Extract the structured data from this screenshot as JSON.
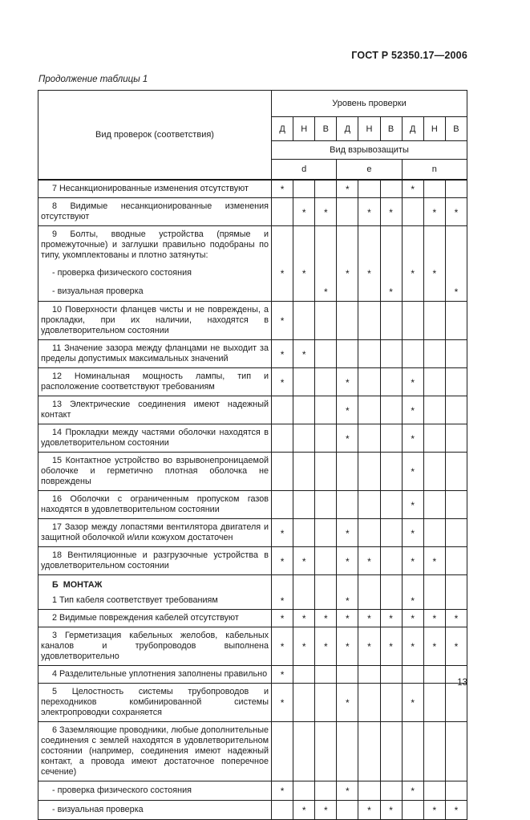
{
  "page": {
    "doc_code": "ГОСТ Р 52350.17—2006",
    "table_caption": "Продолжение таблицы 1",
    "page_number": "13"
  },
  "colors": {
    "ink": "#1c1c1c",
    "paper": "#ffffff"
  },
  "table": {
    "header": {
      "col_label": "Вид проверок (соответствия)",
      "level_label": "Уровень проверки",
      "levels": [
        "Д",
        "Н",
        "В",
        "Д",
        "Н",
        "В",
        "Д",
        "Н",
        "В"
      ],
      "protection_label": "Вид взрывозащиты",
      "protection_types": [
        "d",
        "e",
        "n"
      ]
    },
    "mark_glyph": "*",
    "rows": [
      {
        "label": "7 Несанкционированные изменения отсутствуют",
        "marks": [
          1,
          0,
          0,
          1,
          0,
          0,
          1,
          0,
          0
        ]
      },
      {
        "label": "8 Видимые несанкционированные изменения отсутствуют",
        "marks": [
          0,
          1,
          1,
          0,
          1,
          1,
          0,
          1,
          1
        ]
      },
      {
        "label": "9 Болты, вводные устройства (прямые и промежуточные) и заглушки правильно подобраны по типу, укомплектованы и плотно затянуты:",
        "marks": [
          0,
          0,
          0,
          0,
          0,
          0,
          0,
          0,
          0
        ]
      },
      {
        "label": "- проверка физического состояния",
        "dash": true,
        "join_prev": true,
        "marks": [
          1,
          1,
          0,
          1,
          1,
          0,
          1,
          1,
          0
        ]
      },
      {
        "label": "- визуальная проверка",
        "dash": true,
        "join_prev": true,
        "marks": [
          0,
          0,
          1,
          0,
          0,
          1,
          0,
          0,
          1
        ]
      },
      {
        "label": "10 Поверхности фланцев чисты и не повреждены, а прокладки, при их наличии, находятся в удовлетворительном состоянии",
        "marks": [
          1,
          0,
          0,
          0,
          0,
          0,
          0,
          0,
          0
        ]
      },
      {
        "label": "11 Значение зазора между фланцами не выходит за пределы допустимых максимальных значений",
        "marks": [
          1,
          1,
          0,
          0,
          0,
          0,
          0,
          0,
          0
        ]
      },
      {
        "label": "12 Номинальная мощность лампы, тип и расположение соответствуют требованиям",
        "marks": [
          1,
          0,
          0,
          1,
          0,
          0,
          1,
          0,
          0
        ]
      },
      {
        "label": "13 Электрические соединения имеют надежный контакт",
        "marks": [
          0,
          0,
          0,
          1,
          0,
          0,
          1,
          0,
          0
        ]
      },
      {
        "label": "14 Прокладки между частями оболочки находятся в удовлетворительном состоянии",
        "marks": [
          0,
          0,
          0,
          1,
          0,
          0,
          1,
          0,
          0
        ]
      },
      {
        "label": "15 Контактное устройство во взрывонепроницаемой оболочке и герметично плотная оболочка не повреждены",
        "marks": [
          0,
          0,
          0,
          0,
          0,
          0,
          1,
          0,
          0
        ]
      },
      {
        "label": "16 Оболочки с ограниченным пропуском газов находятся в удовлетворительном состоянии",
        "marks": [
          0,
          0,
          0,
          0,
          0,
          0,
          1,
          0,
          0
        ]
      },
      {
        "label": "17 Зазор между лопастями вентилятора двигателя и защитной оболочкой и/или кожухом достаточен",
        "marks": [
          1,
          0,
          0,
          1,
          0,
          0,
          1,
          0,
          0
        ]
      },
      {
        "label": "18 Вентиляционные и разгрузочные устройства в удовлетворительном состоянии",
        "marks": [
          1,
          1,
          0,
          1,
          1,
          0,
          1,
          1,
          0
        ]
      },
      {
        "label": "Б  МОНТАЖ",
        "section": true,
        "marks": [
          0,
          0,
          0,
          0,
          0,
          0,
          0,
          0,
          0
        ]
      },
      {
        "label": "1 Тип кабеля соответствует требованиям",
        "join_prev": true,
        "marks": [
          1,
          0,
          0,
          1,
          0,
          0,
          1,
          0,
          0
        ]
      },
      {
        "label": "2 Видимые повреждения кабелей отсутствуют",
        "marks": [
          1,
          1,
          1,
          1,
          1,
          1,
          1,
          1,
          1
        ]
      },
      {
        "label": "3 Герметизация кабельных желобов, кабельных каналов и трубопроводов выполнена удовлетворительно",
        "marks": [
          1,
          1,
          1,
          1,
          1,
          1,
          1,
          1,
          1
        ]
      },
      {
        "label": "4 Разделительные уплотнения заполнены правильно",
        "marks": [
          1,
          0,
          0,
          0,
          0,
          0,
          0,
          0,
          0
        ]
      },
      {
        "label": "5 Целостность системы трубопроводов и переходников комбинированной системы электропроводки сохраняется",
        "marks": [
          1,
          0,
          0,
          1,
          0,
          0,
          1,
          0,
          0
        ]
      },
      {
        "label": "6 Заземляющие проводники, любые дополнительные соединения с землей находятся в удовлетворительном состоянии (например, соединения имеют надежный контакт, а провода имеют достаточное поперечное сечение)",
        "marks": [
          0,
          0,
          0,
          0,
          0,
          0,
          0,
          0,
          0
        ]
      },
      {
        "label": "- проверка физического состояния",
        "dash": true,
        "marks": [
          1,
          0,
          0,
          1,
          0,
          0,
          1,
          0,
          0
        ]
      },
      {
        "label": "- визуальная проверка",
        "dash": true,
        "marks": [
          0,
          1,
          1,
          0,
          1,
          1,
          0,
          1,
          1
        ]
      }
    ]
  }
}
